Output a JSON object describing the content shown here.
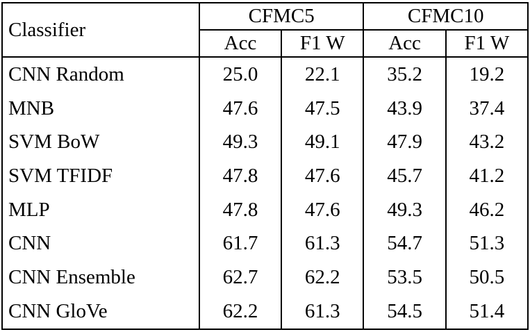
{
  "table": {
    "classifier_header": "Classifier",
    "group_headers": [
      {
        "label": "CFMC5"
      },
      {
        "label": "CFMC10"
      }
    ],
    "sub_headers": [
      "Acc",
      "F1 W",
      "Acc",
      "F1 W"
    ],
    "rows": [
      {
        "name": "CNN Random",
        "values": [
          "25.0",
          "22.1",
          "35.2",
          "19.2"
        ],
        "bold": [
          false,
          false,
          false,
          false
        ]
      },
      {
        "name": "MNB",
        "values": [
          "47.6",
          "47.5",
          "43.9",
          "37.4"
        ],
        "bold": [
          false,
          false,
          false,
          false
        ]
      },
      {
        "name": "SVM BoW",
        "values": [
          "49.3",
          "49.1",
          "47.9",
          "43.2"
        ],
        "bold": [
          false,
          false,
          false,
          false
        ]
      },
      {
        "name": "SVM TFIDF",
        "values": [
          "47.8",
          "47.6",
          "45.7",
          "41.2"
        ],
        "bold": [
          false,
          false,
          false,
          false
        ]
      },
      {
        "name": "MLP",
        "values": [
          "47.8",
          "47.6",
          "49.3",
          "46.2"
        ],
        "bold": [
          false,
          false,
          false,
          false
        ]
      },
      {
        "name": "CNN",
        "values": [
          "61.7",
          "61.3",
          "54.7",
          "51.3"
        ],
        "bold": [
          false,
          false,
          true,
          false
        ]
      },
      {
        "name": "CNN Ensemble",
        "values": [
          "62.7",
          "62.2",
          "53.5",
          "50.5"
        ],
        "bold": [
          true,
          true,
          false,
          false
        ]
      },
      {
        "name": "CNN GloVe",
        "values": [
          "62.2",
          "61.3",
          "54.5",
          "51.4"
        ],
        "bold": [
          false,
          false,
          false,
          true
        ]
      }
    ]
  }
}
